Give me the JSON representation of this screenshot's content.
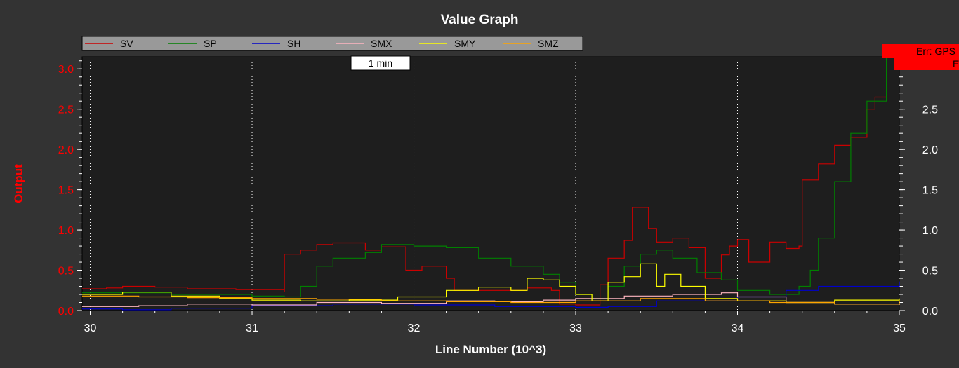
{
  "chart_data": {
    "type": "line",
    "title": "Value Graph",
    "xlabel": "Line Number (10^3)",
    "ylabel": "Output",
    "xlim": [
      29.95,
      35
    ],
    "ylim": [
      0,
      3.15
    ],
    "xticks": [
      "30",
      "31",
      "32",
      "33",
      "34",
      "35"
    ],
    "xtick_values": [
      30,
      31,
      32,
      33,
      34,
      35
    ],
    "yticks": [
      "0.0",
      "0.5",
      "1.0",
      "1.5",
      "2.0",
      "2.5",
      "3.0"
    ],
    "ytick_values": [
      0,
      0.5,
      1.0,
      1.5,
      2.0,
      2.5,
      3.0
    ],
    "right_yticks": [
      "0.0",
      "0.5",
      "1.0",
      "1.5",
      "2.0",
      "2.5"
    ],
    "grid": true,
    "legend_position": "top",
    "background": "#1e1e1e",
    "page_background": "#333333",
    "left_axis_color": "#ff0000",
    "right_axis_color": "#ffffff",
    "series": [
      {
        "name": "SV",
        "color": "#cc0000",
        "points": [
          [
            29.95,
            0.27
          ],
          [
            30.1,
            0.28
          ],
          [
            30.2,
            0.3
          ],
          [
            30.4,
            0.29
          ],
          [
            30.6,
            0.27
          ],
          [
            30.9,
            0.26
          ],
          [
            31.2,
            0.23
          ],
          [
            31.2,
            0.7
          ],
          [
            31.3,
            0.75
          ],
          [
            31.4,
            0.82
          ],
          [
            31.5,
            0.84
          ],
          [
            31.7,
            0.75
          ],
          [
            31.8,
            0.79
          ],
          [
            31.95,
            0.5
          ],
          [
            32.05,
            0.55
          ],
          [
            32.2,
            0.4
          ],
          [
            32.25,
            0.25
          ],
          [
            32.5,
            0.25
          ],
          [
            32.7,
            0.28
          ],
          [
            32.85,
            0.25
          ],
          [
            32.9,
            0.08
          ],
          [
            33.0,
            0.07
          ],
          [
            33.15,
            0.32
          ],
          [
            33.2,
            0.65
          ],
          [
            33.3,
            0.87
          ],
          [
            33.35,
            1.28
          ],
          [
            33.45,
            1.02
          ],
          [
            33.5,
            0.85
          ],
          [
            33.6,
            0.9
          ],
          [
            33.7,
            0.78
          ],
          [
            33.8,
            0.4
          ],
          [
            33.9,
            0.69
          ],
          [
            33.95,
            0.8
          ],
          [
            34.0,
            0.88
          ],
          [
            34.07,
            0.6
          ],
          [
            34.2,
            0.85
          ],
          [
            34.3,
            0.77
          ],
          [
            34.38,
            0.8
          ],
          [
            34.4,
            1.62
          ],
          [
            34.5,
            1.82
          ],
          [
            34.6,
            2.05
          ],
          [
            34.7,
            2.15
          ],
          [
            34.8,
            2.5
          ],
          [
            34.85,
            2.65
          ],
          [
            34.92,
            3.15
          ]
        ]
      },
      {
        "name": "SP",
        "color": "#008000",
        "points": [
          [
            29.95,
            0.22
          ],
          [
            30.5,
            0.2
          ],
          [
            31.0,
            0.18
          ],
          [
            31.2,
            0.17
          ],
          [
            31.3,
            0.3
          ],
          [
            31.4,
            0.55
          ],
          [
            31.5,
            0.65
          ],
          [
            31.7,
            0.72
          ],
          [
            31.8,
            0.82
          ],
          [
            32.0,
            0.8
          ],
          [
            32.2,
            0.78
          ],
          [
            32.4,
            0.65
          ],
          [
            32.6,
            0.55
          ],
          [
            32.8,
            0.45
          ],
          [
            32.9,
            0.35
          ],
          [
            33.0,
            0.2
          ],
          [
            33.1,
            0.15
          ],
          [
            33.2,
            0.3
          ],
          [
            33.3,
            0.55
          ],
          [
            33.4,
            0.7
          ],
          [
            33.5,
            0.75
          ],
          [
            33.6,
            0.65
          ],
          [
            33.75,
            0.47
          ],
          [
            33.9,
            0.38
          ],
          [
            34.0,
            0.25
          ],
          [
            34.2,
            0.2
          ],
          [
            34.38,
            0.3
          ],
          [
            34.45,
            0.5
          ],
          [
            34.5,
            0.9
          ],
          [
            34.6,
            1.6
          ],
          [
            34.7,
            2.2
          ],
          [
            34.8,
            2.6
          ],
          [
            34.92,
            3.15
          ]
        ]
      },
      {
        "name": "SH",
        "color": "#0000cc",
        "points": [
          [
            29.95,
            0.02
          ],
          [
            30.2,
            0.01
          ],
          [
            30.5,
            0.03
          ],
          [
            31.0,
            0.06
          ],
          [
            31.5,
            0.08
          ],
          [
            32.0,
            0.07
          ],
          [
            32.5,
            0.05
          ],
          [
            33.0,
            0.04
          ],
          [
            33.2,
            0.05
          ],
          [
            33.5,
            0.12
          ],
          [
            34.0,
            0.17
          ],
          [
            34.3,
            0.25
          ],
          [
            34.5,
            0.3
          ],
          [
            35.0,
            0.36
          ]
        ]
      },
      {
        "name": "SMX",
        "color": "#ffb6c1",
        "points": [
          [
            29.95,
            0.05
          ],
          [
            30.3,
            0.06
          ],
          [
            30.6,
            0.08
          ],
          [
            31.0,
            0.07
          ],
          [
            31.4,
            0.1
          ],
          [
            31.8,
            0.09
          ],
          [
            32.2,
            0.12
          ],
          [
            32.5,
            0.11
          ],
          [
            32.8,
            0.13
          ],
          [
            33.0,
            0.15
          ],
          [
            33.3,
            0.18
          ],
          [
            33.6,
            0.2
          ],
          [
            33.9,
            0.22
          ],
          [
            34.0,
            0.17
          ],
          [
            34.3,
            0.1
          ],
          [
            34.6,
            0.08
          ],
          [
            35.0,
            0.07
          ]
        ]
      },
      {
        "name": "SMY",
        "color": "#ffff00",
        "points": [
          [
            29.95,
            0.2
          ],
          [
            30.2,
            0.23
          ],
          [
            30.5,
            0.18
          ],
          [
            30.8,
            0.15
          ],
          [
            31.0,
            0.13
          ],
          [
            31.3,
            0.12
          ],
          [
            31.6,
            0.13
          ],
          [
            31.9,
            0.17
          ],
          [
            32.2,
            0.25
          ],
          [
            32.4,
            0.29
          ],
          [
            32.6,
            0.25
          ],
          [
            32.7,
            0.4
          ],
          [
            32.8,
            0.38
          ],
          [
            32.9,
            0.3
          ],
          [
            33.0,
            0.2
          ],
          [
            33.1,
            0.12
          ],
          [
            33.2,
            0.35
          ],
          [
            33.3,
            0.42
          ],
          [
            33.4,
            0.58
          ],
          [
            33.5,
            0.3
          ],
          [
            33.55,
            0.45
          ],
          [
            33.65,
            0.3
          ],
          [
            33.8,
            0.15
          ],
          [
            34.0,
            0.12
          ],
          [
            34.3,
            0.1
          ],
          [
            34.6,
            0.13
          ],
          [
            35.0,
            0.15
          ]
        ]
      },
      {
        "name": "SMZ",
        "color": "#ffa500",
        "points": [
          [
            29.95,
            0.18
          ],
          [
            30.3,
            0.17
          ],
          [
            30.6,
            0.16
          ],
          [
            31.0,
            0.15
          ],
          [
            31.4,
            0.14
          ],
          [
            31.8,
            0.12
          ],
          [
            32.2,
            0.11
          ],
          [
            32.6,
            0.1
          ],
          [
            33.0,
            0.12
          ],
          [
            33.4,
            0.15
          ],
          [
            33.8,
            0.12
          ],
          [
            34.2,
            0.1
          ],
          [
            34.6,
            0.08
          ],
          [
            35.0,
            0.12
          ]
        ]
      }
    ],
    "annotations": {
      "time_marker": "1 min",
      "error_1": "Err: GPS",
      "error_2": "E"
    }
  }
}
